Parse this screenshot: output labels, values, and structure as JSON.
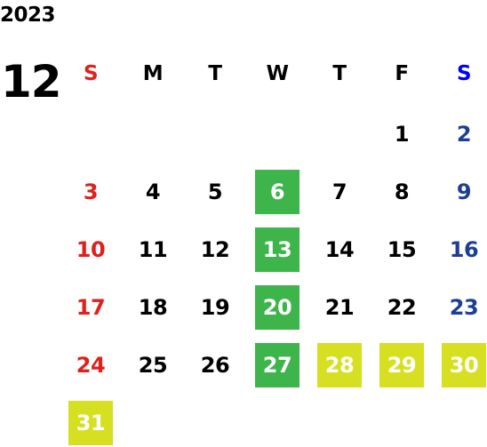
{
  "year": "2023",
  "month": "12",
  "weekdays": [
    {
      "label": "S",
      "color": "#e0201c"
    },
    {
      "label": "M",
      "color": "#000000"
    },
    {
      "label": "T",
      "color": "#000000"
    },
    {
      "label": "W",
      "color": "#000000"
    },
    {
      "label": "T",
      "color": "#000000"
    },
    {
      "label": "F",
      "color": "#000000"
    },
    {
      "label": "S",
      "color": "#0000ff"
    }
  ],
  "colors": {
    "sunday": "#e0201c",
    "saturday": "#1c3f94",
    "weekday": "#000000",
    "highlight_green": "#3db54a",
    "highlight_yellow": "#d6e021"
  },
  "weeks": [
    [
      null,
      null,
      null,
      null,
      null,
      {
        "day": "1"
      },
      {
        "day": "2"
      }
    ],
    [
      {
        "day": "3"
      },
      {
        "day": "4"
      },
      {
        "day": "5"
      },
      {
        "day": "6",
        "highlight": "green"
      },
      {
        "day": "7"
      },
      {
        "day": "8"
      },
      {
        "day": "9"
      }
    ],
    [
      {
        "day": "10"
      },
      {
        "day": "11"
      },
      {
        "day": "12"
      },
      {
        "day": "13",
        "highlight": "green"
      },
      {
        "day": "14"
      },
      {
        "day": "15"
      },
      {
        "day": "16"
      }
    ],
    [
      {
        "day": "17"
      },
      {
        "day": "18"
      },
      {
        "day": "19"
      },
      {
        "day": "20",
        "highlight": "green"
      },
      {
        "day": "21"
      },
      {
        "day": "22"
      },
      {
        "day": "23"
      }
    ],
    [
      {
        "day": "24"
      },
      {
        "day": "25"
      },
      {
        "day": "26"
      },
      {
        "day": "27",
        "highlight": "green"
      },
      {
        "day": "28",
        "highlight": "yellow"
      },
      {
        "day": "29",
        "highlight": "yellow"
      },
      {
        "day": "30",
        "highlight": "yellow"
      }
    ],
    [
      {
        "day": "31",
        "highlight": "yellow"
      },
      null,
      null,
      null,
      null,
      null,
      null
    ]
  ]
}
